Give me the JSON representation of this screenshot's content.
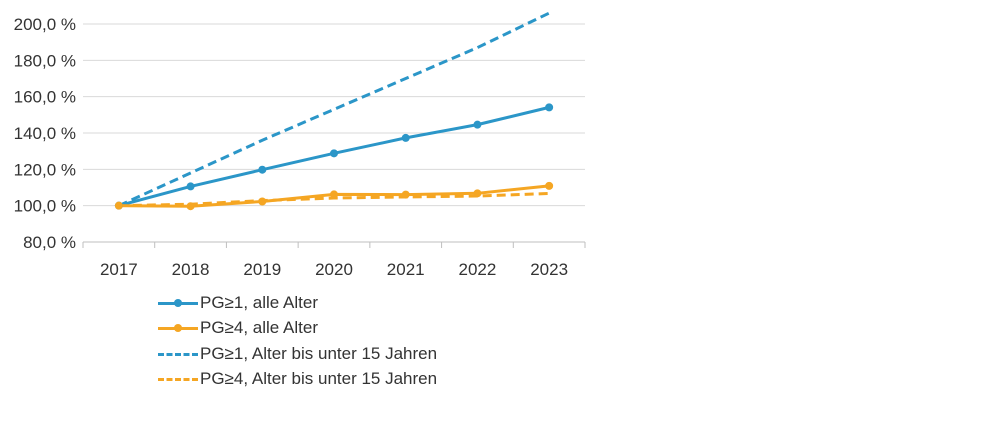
{
  "chart_data": {
    "type": "line",
    "title": "",
    "xlabel": "",
    "ylabel": "",
    "categories": [
      "2017",
      "2018",
      "2019",
      "2020",
      "2021",
      "2022",
      "2023"
    ],
    "ylim": [
      80,
      200
    ],
    "yticks": [
      80,
      100,
      120,
      140,
      160,
      180,
      200
    ],
    "ytick_labels": [
      "80,0 %",
      "100,0 %",
      "120,0 %",
      "140,0 %",
      "160,0 %",
      "180,0 %",
      "200,0 %"
    ],
    "grid": true,
    "legend_position": "bottom",
    "series": [
      {
        "name": "PG≥1, alle Alter",
        "values": [
          100,
          110.6,
          119.8,
          128.8,
          137.3,
          144.6,
          154.1
        ],
        "color": "#2b96c8",
        "style": "solid",
        "markers": true
      },
      {
        "name": "PG≥4, alle Alter",
        "values": [
          100,
          99.7,
          102.3,
          106.2,
          106.1,
          106.8,
          110.9
        ],
        "color": "#f5a623",
        "style": "solid",
        "markers": true
      },
      {
        "name": "PG≥1, Alter bis unter 15 Jahren",
        "values": [
          100,
          118,
          136,
          153,
          170,
          187,
          206
        ],
        "color": "#2b96c8",
        "style": "dashed",
        "markers": false
      },
      {
        "name": "PG≥4, Alter bis unter 15 Jahren",
        "values": [
          100,
          100.8,
          102.8,
          104.2,
          104.8,
          105.3,
          106.7
        ],
        "color": "#f5a623",
        "style": "dashed",
        "markers": false
      }
    ]
  }
}
